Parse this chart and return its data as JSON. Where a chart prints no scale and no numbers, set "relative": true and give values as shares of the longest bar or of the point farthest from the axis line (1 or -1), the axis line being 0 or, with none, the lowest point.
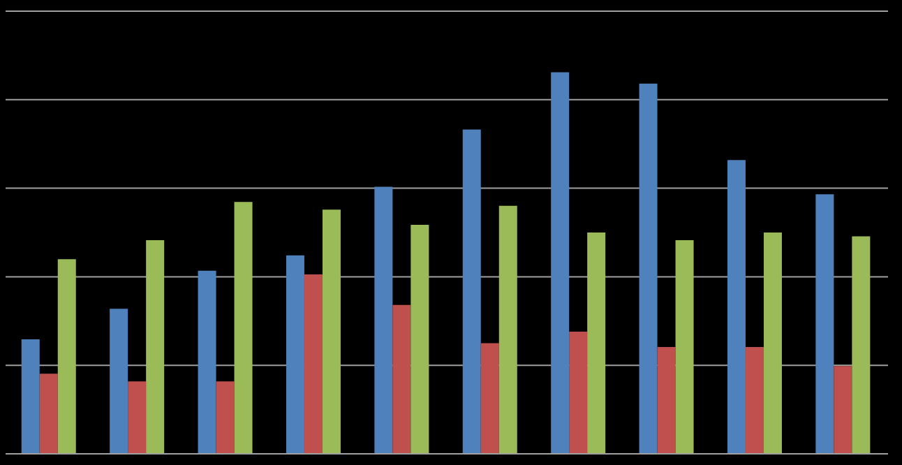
{
  "chart_data": {
    "type": "bar",
    "relative": true,
    "grid": "y",
    "categories": [
      null,
      null,
      null,
      null,
      null,
      null,
      null,
      null,
      null,
      null
    ],
    "series": [
      {
        "color": "#4f81bd",
        "values": [
          0.3,
          0.38,
          0.48,
          0.52,
          0.7,
          0.85,
          1,
          0.97,
          0.77,
          0.68
        ]
      },
      {
        "color": "#c0504d",
        "values": [
          0.21,
          0.19,
          0.19,
          0.47,
          0.39,
          0.29,
          0.32,
          0.28,
          0.28,
          0.23
        ]
      },
      {
        "color": "#9bbb59",
        "values": [
          0.51,
          0.56,
          0.66,
          0.64,
          0.6,
          0.65,
          0.58,
          0.56,
          0.58,
          0.57
        ]
      }
    ]
  }
}
